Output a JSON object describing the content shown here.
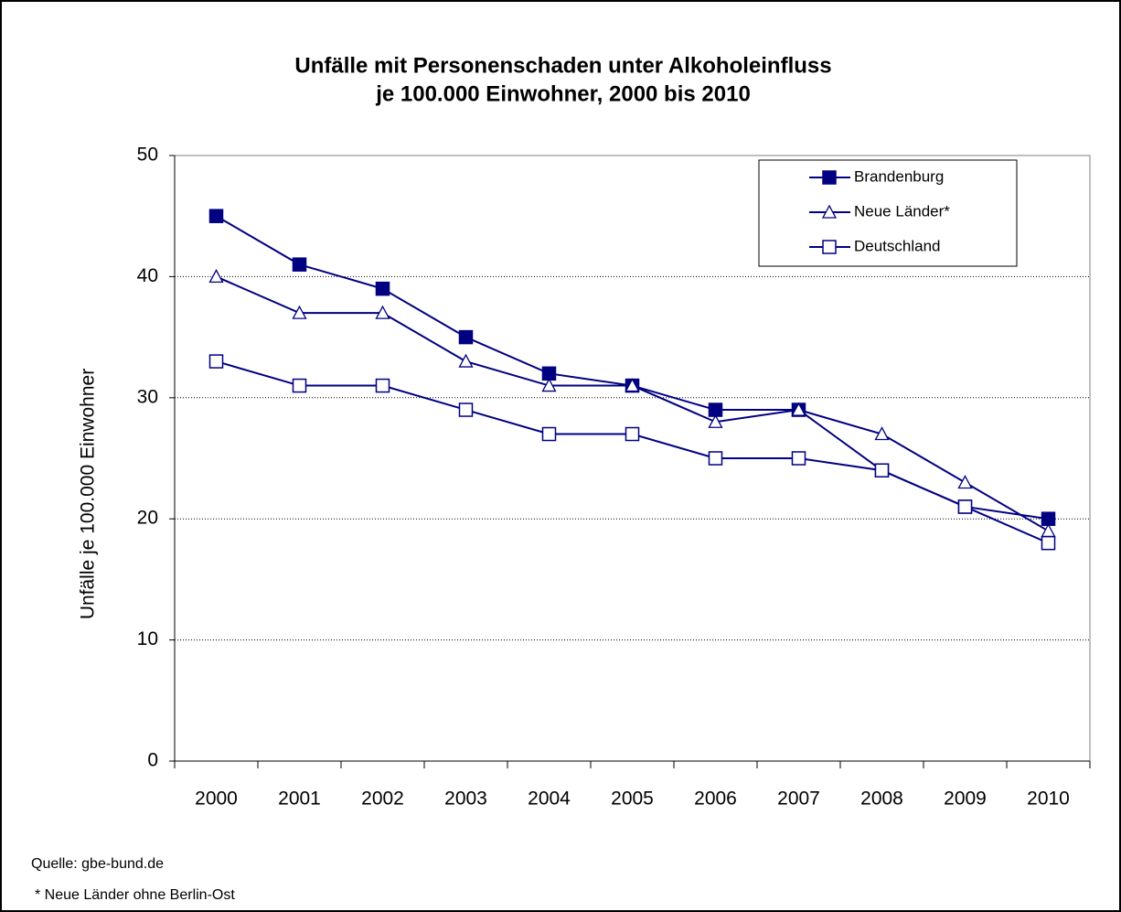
{
  "chart_data": {
    "type": "line",
    "title": [
      "Unfälle mit Personenschaden unter Alkoholeinfluss",
      "je 100.000 Einwohner, 2000 bis 2010"
    ],
    "y_label": "Unfälle je 100.000 Einwohner",
    "categories": [
      "2000",
      "2001",
      "2002",
      "2003",
      "2004",
      "2005",
      "2006",
      "2007",
      "2008",
      "2009",
      "2010"
    ],
    "series": [
      {
        "name": "Brandenburg",
        "color": "#000080",
        "marker": "filled-square",
        "values": [
          45,
          41,
          39,
          35,
          32,
          31,
          29,
          29,
          24,
          21,
          20
        ]
      },
      {
        "name": "Neue Länder*",
        "color": "#000080",
        "marker": "open-triangle",
        "values": [
          40,
          37,
          37,
          33,
          31,
          31,
          28,
          29,
          27,
          23,
          19
        ]
      },
      {
        "name": "Deutschland",
        "color": "#000080",
        "marker": "open-square",
        "values": [
          33,
          31,
          31,
          29,
          27,
          27,
          25,
          25,
          24,
          21,
          18
        ]
      }
    ],
    "ylim": [
      0,
      50
    ],
    "yticks": [
      0,
      10,
      20,
      30,
      40,
      50
    ],
    "grid": true,
    "legend": "top-right",
    "source": "Quelle: gbe-bund.de",
    "note": "* Neue Länder ohne Berlin-Ost"
  }
}
